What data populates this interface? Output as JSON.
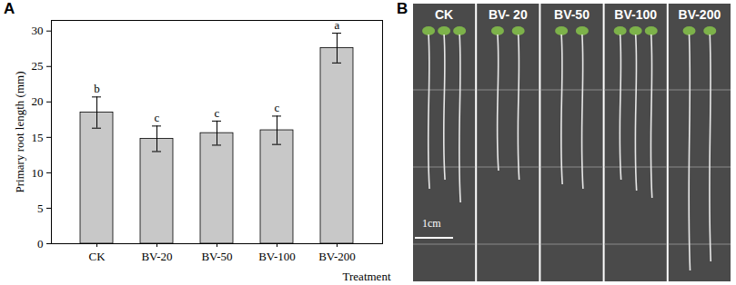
{
  "chart_data": {
    "type": "bar",
    "title": "A",
    "categories": [
      "CK",
      "BV-20",
      "BV-50",
      "BV-100",
      "BV-200"
    ],
    "values": [
      18.5,
      14.8,
      15.6,
      16.0,
      27.6
    ],
    "errors": [
      2.2,
      1.8,
      1.7,
      2.0,
      2.1
    ],
    "letters": [
      "b",
      "c",
      "c",
      "c",
      "a"
    ],
    "color": "#c8c8c8",
    "x_label": "Treatment",
    "y_label": "Primary root length (mm)",
    "ylim": [
      0,
      31.5
    ],
    "yticks": [
      0,
      5,
      10,
      15,
      20,
      25,
      30
    ],
    "grid": false
  },
  "photo": {
    "panel_label": "B",
    "labels": [
      "CK",
      "BV- 20",
      "BV-50",
      "BV-100",
      "BV-200"
    ],
    "scale_bar": "1cm"
  }
}
